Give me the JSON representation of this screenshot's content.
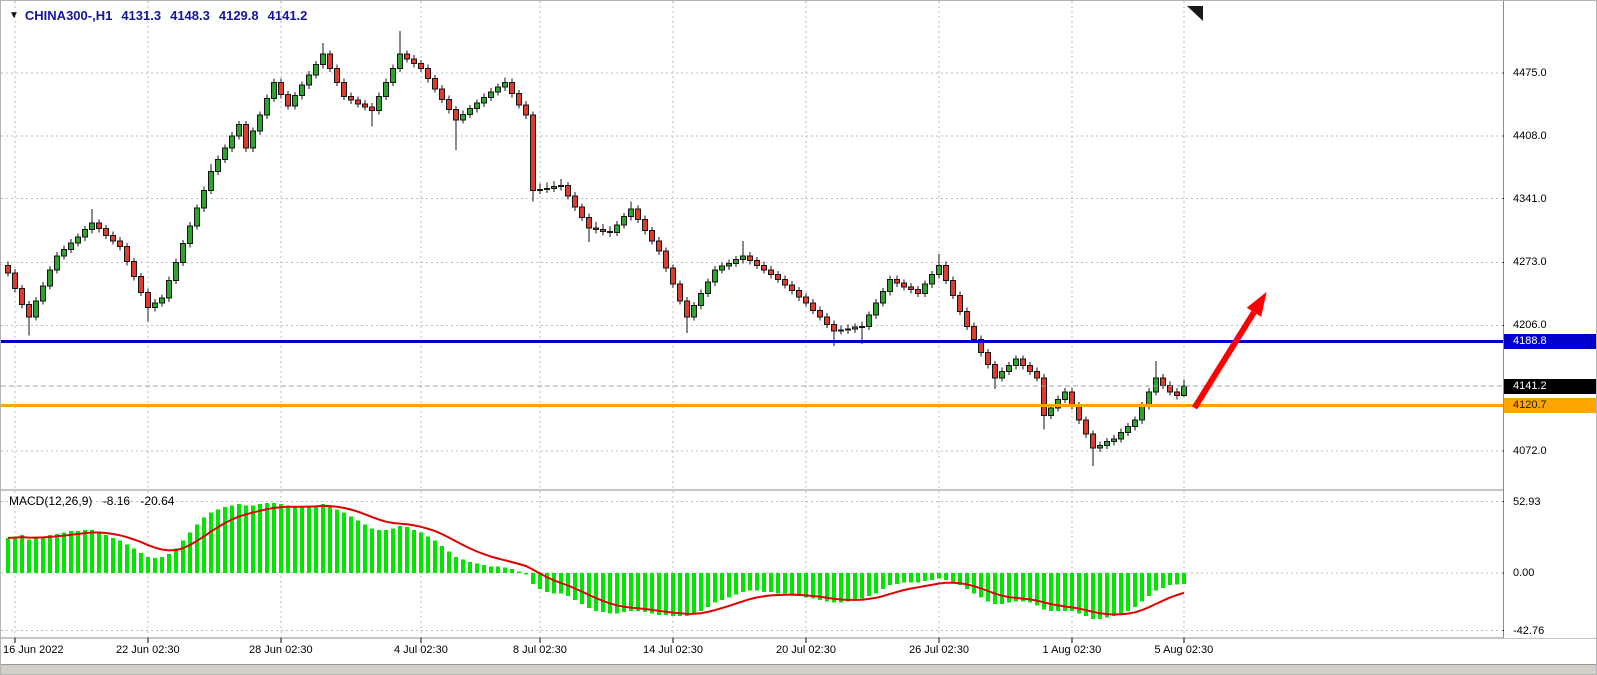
{
  "icons": {
    "dropdown": "▼"
  },
  "header": {
    "symbol_period": "CHINA300-,H1",
    "open": "4131.3",
    "high": "4148.3",
    "low": "4129.8",
    "close": "4141.2"
  },
  "colors": {
    "header_text": "#16169B",
    "candle_up": "#2FA32F",
    "candle_down": "#E13B30",
    "candle_outline": "#151515",
    "grid": "#BDBDBD",
    "separator": "#8C8C8C",
    "macd_bar": "#00E400",
    "macd_signal": "#E00000",
    "level_blue": "#0000C8",
    "level_orange": "#FFA500",
    "bid_line": "#A0A0A0",
    "arrow": "#FF0000",
    "axis_text": "#000000",
    "bottom_strip": "#D4D0C8"
  },
  "price_axis": {
    "labels": [
      {
        "text": "4475.0",
        "price": 4475.0
      },
      {
        "text": "4408.0",
        "price": 4408.0
      },
      {
        "text": "4341.0",
        "price": 4341.0
      },
      {
        "text": "4273.0",
        "price": 4273.0
      },
      {
        "text": "4206.0",
        "price": 4206.0
      },
      {
        "text": "4072.0",
        "price": 4072.0
      }
    ],
    "badges": [
      {
        "text": "4188.8",
        "price": 4188.8,
        "type": "blue"
      },
      {
        "text": "4141.2",
        "price": 4141.2,
        "type": "black"
      },
      {
        "text": "4120.7",
        "price": 4120.7,
        "type": "orange"
      }
    ]
  },
  "macd_panel": {
    "name": "MACD(12,26,9)",
    "macd_value": "-8.16",
    "signal_value": "-20.64",
    "axis": [
      {
        "text": "52.93",
        "value": 52.93
      },
      {
        "text": "0.00",
        "value": 0
      },
      {
        "text": "-42.76",
        "value": -42.76
      }
    ]
  },
  "time_axis": {
    "ticks": [
      {
        "label": "16 Jun 2022",
        "index": 1
      },
      {
        "label": "22 Jun 02:30",
        "index": 20
      },
      {
        "label": "28 Jun 02:30",
        "index": 39
      },
      {
        "label": "4 Jul 02:30",
        "index": 59
      },
      {
        "label": "8 Jul 02:30",
        "index": 76
      },
      {
        "label": "14 Jul 02:30",
        "index": 95
      },
      {
        "label": "20 Jul 02:30",
        "index": 114
      },
      {
        "label": "26 Jul 02:30",
        "index": 133
      },
      {
        "label": "1 Aug 02:30",
        "index": 152
      },
      {
        "label": "5 Aug 02:30",
        "index": 168
      }
    ]
  },
  "chart_data": [
    {
      "type": "candlestick",
      "title": "CHINA300- H1",
      "ylim": [
        4040,
        4545
      ],
      "grid_prices": [
        4475,
        4408,
        4341,
        4273,
        4206,
        4072
      ],
      "levels": [
        {
          "id": "blue-hline",
          "price": 4188.8,
          "color": "#0000C8",
          "width": 3,
          "style": "solid"
        },
        {
          "id": "bid-line",
          "price": 4141.2,
          "color": "#A0A0A0",
          "width": 1,
          "style": "dashed"
        },
        {
          "id": "orange-hline",
          "price": 4120.7,
          "color": "#FFA500",
          "width": 3,
          "style": "solid"
        }
      ],
      "arrow": {
        "from_index": 169.5,
        "from_price": 4118,
        "to_index": 179.5,
        "to_price": 4238
      },
      "ohlc": [
        [
          4270,
          4274,
          4258,
          4262
        ],
        [
          4262,
          4266,
          4241,
          4245
        ],
        [
          4245,
          4249,
          4224,
          4228
        ],
        [
          4228,
          4232,
          4195,
          4215
        ],
        [
          4215,
          4236,
          4211,
          4232
        ],
        [
          4232,
          4252,
          4228,
          4248
        ],
        [
          4248,
          4269,
          4244,
          4265
        ],
        [
          4265,
          4284,
          4261,
          4280
        ],
        [
          4280,
          4291,
          4276,
          4287
        ],
        [
          4287,
          4298,
          4283,
          4294
        ],
        [
          4294,
          4304,
          4290,
          4300
        ],
        [
          4300,
          4312,
          4296,
          4308
        ],
        [
          4308,
          4330,
          4304,
          4315
        ],
        [
          4315,
          4319,
          4305,
          4309
        ],
        [
          4309,
          4313,
          4298,
          4302
        ],
        [
          4302,
          4306,
          4292,
          4296
        ],
        [
          4296,
          4300,
          4286,
          4290
        ],
        [
          4290,
          4294,
          4270,
          4274
        ],
        [
          4274,
          4278,
          4254,
          4258
        ],
        [
          4258,
          4262,
          4237,
          4241
        ],
        [
          4241,
          4245,
          4210,
          4225
        ],
        [
          4225,
          4234,
          4221,
          4230
        ],
        [
          4230,
          4239,
          4226,
          4235
        ],
        [
          4235,
          4258,
          4231,
          4254
        ],
        [
          4254,
          4277,
          4250,
          4273
        ],
        [
          4273,
          4297,
          4269,
          4293
        ],
        [
          4293,
          4316,
          4289,
          4312
        ],
        [
          4312,
          4335,
          4308,
          4331
        ],
        [
          4331,
          4354,
          4327,
          4350
        ],
        [
          4350,
          4378,
          4346,
          4370
        ],
        [
          4370,
          4387,
          4366,
          4383
        ],
        [
          4383,
          4399,
          4379,
          4395
        ],
        [
          4395,
          4412,
          4391,
          4408
        ],
        [
          4408,
          4424,
          4404,
          4420
        ],
        [
          4420,
          4424,
          4391,
          4395
        ],
        [
          4395,
          4417,
          4391,
          4413
        ],
        [
          4413,
          4434,
          4409,
          4430
        ],
        [
          4430,
          4452,
          4426,
          4448
        ],
        [
          4448,
          4469,
          4444,
          4465
        ],
        [
          4465,
          4469,
          4448,
          4452
        ],
        [
          4452,
          4456,
          4436,
          4440
        ],
        [
          4440,
          4455,
          4436,
          4451
        ],
        [
          4451,
          4466,
          4447,
          4462
        ],
        [
          4462,
          4477,
          4458,
          4473
        ],
        [
          4473,
          4488,
          4469,
          4484
        ],
        [
          4484,
          4507,
          4480,
          4495
        ],
        [
          4495,
          4499,
          4476,
          4480
        ],
        [
          4480,
          4484,
          4461,
          4465
        ],
        [
          4465,
          4469,
          4446,
          4450
        ],
        [
          4450,
          4454,
          4442,
          4446
        ],
        [
          4446,
          4450,
          4438,
          4442
        ],
        [
          4442,
          4446,
          4435,
          4439
        ],
        [
          4439,
          4443,
          4418,
          4435
        ],
        [
          4435,
          4454,
          4431,
          4450
        ],
        [
          4450,
          4469,
          4446,
          4465
        ],
        [
          4465,
          4484,
          4461,
          4480
        ],
        [
          4480,
          4520,
          4476,
          4495
        ],
        [
          4495,
          4499,
          4486,
          4490
        ],
        [
          4490,
          4494,
          4481,
          4485
        ],
        [
          4485,
          4489,
          4476,
          4480
        ],
        [
          4480,
          4484,
          4465,
          4469
        ],
        [
          4469,
          4473,
          4454,
          4458
        ],
        [
          4458,
          4462,
          4443,
          4447
        ],
        [
          4447,
          4451,
          4432,
          4436
        ],
        [
          4436,
          4440,
          4393,
          4425
        ],
        [
          4425,
          4435,
          4421,
          4431
        ],
        [
          4431,
          4441,
          4427,
          4437
        ],
        [
          4437,
          4447,
          4433,
          4443
        ],
        [
          4443,
          4453,
          4439,
          4449
        ],
        [
          4449,
          4459,
          4445,
          4455
        ],
        [
          4455,
          4464,
          4451,
          4460
        ],
        [
          4460,
          4470,
          4456,
          4465
        ],
        [
          4465,
          4469,
          4449,
          4453
        ],
        [
          4453,
          4457,
          4437,
          4441
        ],
        [
          4441,
          4445,
          4426,
          4430
        ],
        [
          4430,
          4434,
          4338,
          4350
        ],
        [
          4350,
          4357,
          4346,
          4351
        ],
        [
          4351,
          4358,
          4347,
          4352
        ],
        [
          4352,
          4360,
          4348,
          4354
        ],
        [
          4354,
          4362,
          4350,
          4355
        ],
        [
          4355,
          4359,
          4340,
          4344
        ],
        [
          4344,
          4348,
          4328,
          4332
        ],
        [
          4332,
          4336,
          4317,
          4321
        ],
        [
          4321,
          4325,
          4295,
          4310
        ],
        [
          4310,
          4316,
          4304,
          4308
        ],
        [
          4308,
          4314,
          4302,
          4306
        ],
        [
          4306,
          4312,
          4300,
          4305
        ],
        [
          4305,
          4317,
          4301,
          4313
        ],
        [
          4313,
          4326,
          4309,
          4322
        ],
        [
          4322,
          4338,
          4318,
          4330
        ],
        [
          4330,
          4334,
          4315,
          4319
        ],
        [
          4319,
          4323,
          4303,
          4307
        ],
        [
          4307,
          4311,
          4292,
          4296
        ],
        [
          4296,
          4300,
          4281,
          4285
        ],
        [
          4285,
          4289,
          4263,
          4267
        ],
        [
          4267,
          4271,
          4246,
          4250
        ],
        [
          4250,
          4254,
          4228,
          4232
        ],
        [
          4232,
          4236,
          4198,
          4215
        ],
        [
          4215,
          4231,
          4211,
          4227
        ],
        [
          4227,
          4244,
          4223,
          4240
        ],
        [
          4240,
          4256,
          4236,
          4252
        ],
        [
          4252,
          4269,
          4248,
          4265
        ],
        [
          4265,
          4273,
          4261,
          4269
        ],
        [
          4269,
          4276,
          4265,
          4272
        ],
        [
          4272,
          4280,
          4268,
          4276
        ],
        [
          4276,
          4296,
          4272,
          4280
        ],
        [
          4280,
          4284,
          4271,
          4275
        ],
        [
          4275,
          4279,
          4266,
          4270
        ],
        [
          4270,
          4274,
          4261,
          4265
        ],
        [
          4265,
          4269,
          4256,
          4260
        ],
        [
          4260,
          4264,
          4251,
          4255
        ],
        [
          4255,
          4259,
          4245,
          4249
        ],
        [
          4249,
          4253,
          4239,
          4243
        ],
        [
          4243,
          4247,
          4232,
          4236
        ],
        [
          4236,
          4240,
          4226,
          4230
        ],
        [
          4230,
          4234,
          4218,
          4222
        ],
        [
          4222,
          4226,
          4211,
          4215
        ],
        [
          4215,
          4219,
          4203,
          4207
        ],
        [
          4207,
          4211,
          4184,
          4200
        ],
        [
          4200,
          4206,
          4196,
          4201
        ],
        [
          4201,
          4207,
          4197,
          4202
        ],
        [
          4202,
          4208,
          4198,
          4204
        ],
        [
          4204,
          4210,
          4186,
          4205
        ],
        [
          4205,
          4221,
          4201,
          4217
        ],
        [
          4217,
          4234,
          4213,
          4230
        ],
        [
          4230,
          4246,
          4226,
          4242
        ],
        [
          4242,
          4259,
          4238,
          4255
        ],
        [
          4255,
          4259,
          4247,
          4251
        ],
        [
          4251,
          4255,
          4243,
          4247
        ],
        [
          4247,
          4251,
          4240,
          4244
        ],
        [
          4244,
          4248,
          4236,
          4240
        ],
        [
          4240,
          4254,
          4236,
          4250
        ],
        [
          4250,
          4264,
          4246,
          4260
        ],
        [
          4260,
          4282,
          4256,
          4270
        ],
        [
          4270,
          4274,
          4250,
          4254
        ],
        [
          4254,
          4258,
          4234,
          4238
        ],
        [
          4238,
          4242,
          4217,
          4221
        ],
        [
          4221,
          4225,
          4201,
          4205
        ],
        [
          4205,
          4209,
          4187,
          4191
        ],
        [
          4191,
          4195,
          4173,
          4177
        ],
        [
          4177,
          4181,
          4160,
          4164
        ],
        [
          4164,
          4168,
          4138,
          4150
        ],
        [
          4150,
          4161,
          4146,
          4157
        ],
        [
          4157,
          4167,
          4153,
          4163
        ],
        [
          4163,
          4174,
          4159,
          4170
        ],
        [
          4170,
          4174,
          4159,
          4163
        ],
        [
          4163,
          4167,
          4153,
          4157
        ],
        [
          4157,
          4161,
          4146,
          4150
        ],
        [
          4150,
          4154,
          4095,
          4110
        ],
        [
          4110,
          4122,
          4106,
          4118
        ],
        [
          4118,
          4131,
          4114,
          4127
        ],
        [
          4127,
          4139,
          4123,
          4135
        ],
        [
          4135,
          4139,
          4116,
          4120
        ],
        [
          4120,
          4124,
          4101,
          4105
        ],
        [
          4105,
          4109,
          4086,
          4090
        ],
        [
          4090,
          4094,
          4056,
          4075
        ],
        [
          4075,
          4082,
          4071,
          4078
        ],
        [
          4078,
          4086,
          4074,
          4082
        ],
        [
          4082,
          4089,
          4078,
          4085
        ],
        [
          4085,
          4096,
          4081,
          4092
        ],
        [
          4092,
          4102,
          4088,
          4098
        ],
        [
          4098,
          4109,
          4094,
          4105
        ],
        [
          4105,
          4124,
          4101,
          4120
        ],
        [
          4120,
          4139,
          4116,
          4135
        ],
        [
          4135,
          4168,
          4131,
          4150
        ],
        [
          4150,
          4154,
          4138,
          4142
        ],
        [
          4142,
          4146,
          4131,
          4135
        ],
        [
          4135,
          4139,
          4127,
          4131.3
        ],
        [
          4131.3,
          4148.3,
          4129.8,
          4141.2
        ]
      ]
    },
    {
      "type": "bar",
      "name": "MACD(12,26,9)",
      "current_macd": -8.16,
      "current_signal": -20.64,
      "signal_period": 9,
      "axis_ticks": [
        52.93,
        0,
        -42.76
      ],
      "values": [
        26,
        27,
        28,
        25,
        26,
        27,
        28,
        29,
        30,
        31,
        31,
        32,
        32,
        30,
        28,
        26,
        24,
        21,
        18,
        15,
        12,
        11,
        12,
        14,
        18,
        24,
        30,
        36,
        41,
        45,
        47,
        49,
        50,
        51,
        50,
        50,
        51,
        52,
        52,
        51,
        50,
        49,
        49,
        50,
        50,
        51,
        49,
        47,
        45,
        42,
        39,
        36,
        33,
        32,
        32,
        33,
        35,
        34,
        32,
        30,
        27,
        24,
        20,
        16,
        12,
        10,
        8,
        7,
        6,
        5,
        5,
        4,
        3,
        1,
        -1,
        -8,
        -12,
        -14,
        -15,
        -15,
        -17,
        -20,
        -23,
        -26,
        -28,
        -29,
        -30,
        -30,
        -29,
        -28,
        -28,
        -29,
        -30,
        -31,
        -31,
        -32,
        -32,
        -32,
        -30,
        -28,
        -25,
        -22,
        -20,
        -18,
        -16,
        -14,
        -13,
        -13,
        -14,
        -14,
        -15,
        -15,
        -16,
        -17,
        -18,
        -19,
        -20,
        -21,
        -22,
        -22,
        -21,
        -20,
        -19,
        -17,
        -15,
        -12,
        -9,
        -8,
        -7,
        -7,
        -7,
        -6,
        -5,
        -4,
        -5,
        -7,
        -9,
        -12,
        -15,
        -18,
        -21,
        -23,
        -23,
        -22,
        -21,
        -21,
        -22,
        -24,
        -27,
        -28,
        -28,
        -28,
        -28,
        -30,
        -32,
        -34,
        -34,
        -33,
        -32,
        -30,
        -28,
        -25,
        -21,
        -17,
        -13,
        -11,
        -9,
        -8.5,
        -8.16
      ]
    }
  ]
}
